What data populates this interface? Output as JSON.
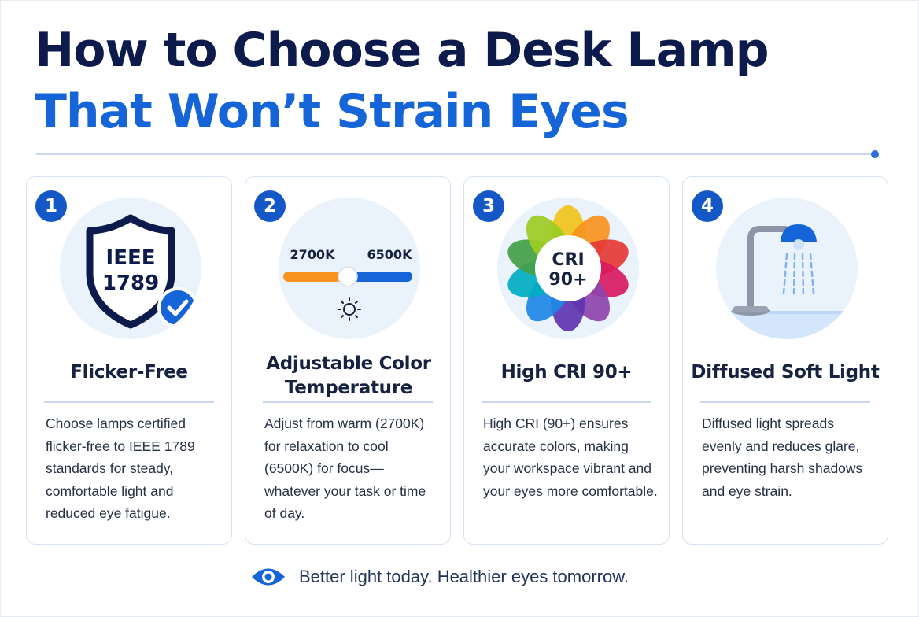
{
  "header": {
    "title_line1": "How to Choose a Desk Lamp",
    "title_line2": "That Won’t Strain Eyes"
  },
  "cards": [
    {
      "number": "1",
      "icon": "shield-check-icon",
      "icon_text": [
        "IEEE",
        "1789"
      ],
      "title": "Flicker-Free",
      "body": "Choose lamps certified flicker-free to IEEE 1789 standards for steady, comfortable light and reduced eye fatigue."
    },
    {
      "number": "2",
      "icon": "color-temperature-slider-icon",
      "slider_labels": [
        "2700K",
        "6500K"
      ],
      "title": "Adjustable Color Temperature",
      "body": "Adjust from warm (2700K) for relaxation to cool (6500K) for focus—whatever your task or time of day."
    },
    {
      "number": "3",
      "icon": "color-wheel-icon",
      "icon_text": [
        "CRI",
        "90+"
      ],
      "title": "High CRI 90+",
      "body": "High CRI (90+) ensures accurate colors, making your workspace vibrant and your eyes more comfortable."
    },
    {
      "number": "4",
      "icon": "desk-lamp-icon",
      "title": "Diffused Soft Light",
      "body": "Diffused light spreads evenly and reduces glare, preventing harsh shadows and eye strain."
    }
  ],
  "footer": {
    "icon": "eye-icon",
    "tagline": "Better light today. Healthier eyes tomorrow."
  },
  "colors": {
    "navy": "#0d1b4c",
    "accent_blue": "#1565d8",
    "badge_blue": "#1457c7",
    "warm_orange": "#f7931e",
    "card_border": "#d6e2f2"
  }
}
